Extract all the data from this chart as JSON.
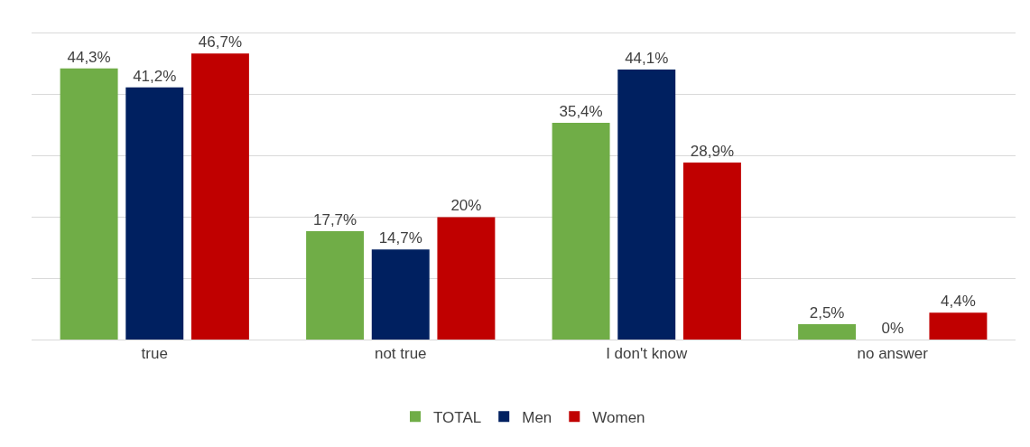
{
  "chart_data": {
    "type": "bar",
    "categories": [
      "true",
      "not true",
      "I don't know",
      "no answer"
    ],
    "series": [
      {
        "name": "TOTAL",
        "color": "#70ad47",
        "values": [
          44.3,
          17.7,
          35.4,
          2.5
        ],
        "value_labels": [
          "44,3%",
          "17,7%",
          "35,4%",
          "2,5%"
        ]
      },
      {
        "name": "Men",
        "color": "#002060",
        "values": [
          41.2,
          14.7,
          44.1,
          0
        ],
        "value_labels": [
          "41,2%",
          "14,7%",
          "44,1%",
          "0%"
        ]
      },
      {
        "name": "Women",
        "color": "#c00000",
        "values": [
          46.7,
          20,
          28.9,
          4.4
        ],
        "value_labels": [
          "46,7%",
          "20%",
          "28,9%",
          "4,4%"
        ]
      }
    ],
    "ylim": [
      0,
      50
    ],
    "yticks": [
      {
        "value": 0,
        "label": null
      },
      {
        "value": 10,
        "label": null
      },
      {
        "value": 20,
        "label": null
      },
      {
        "value": 30,
        "label": null
      },
      {
        "value": 40,
        "label": null
      },
      {
        "value": 50,
        "label": null
      }
    ],
    "tick_labels": "x",
    "grid": "y",
    "legend": "bottom"
  }
}
